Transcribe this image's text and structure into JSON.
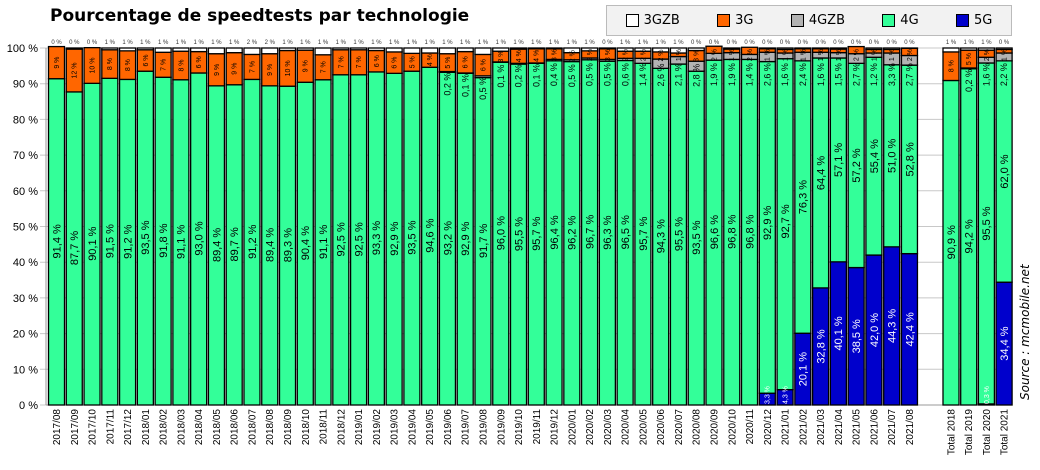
{
  "chart_data": {
    "type": "bar",
    "stacked": true,
    "title": "Pourcentage de speedtests par technologie",
    "source": "Source : mcmobile.net",
    "ylim": [
      0,
      100
    ],
    "yticks": [
      "0 %",
      "10 %",
      "20 %",
      "30 %",
      "40 %",
      "50 %",
      "60 %",
      "70 %",
      "80 %",
      "90 %",
      "100 %"
    ],
    "legend_position": "top-right",
    "colors": {
      "3GZB": "#ffffff",
      "3G": "#ff6600",
      "4GZB": "#b3b3b3",
      "4G": "#33ff99",
      "5G": "#0000cc"
    },
    "legend": [
      "3GZB",
      "3G",
      "4GZB",
      "4G",
      "5G"
    ],
    "categories": [
      "2017/08",
      "2017/09",
      "2017/10",
      "2017/11",
      "2017/12",
      "2018/01",
      "2018/02",
      "2018/03",
      "2018/04",
      "2018/05",
      "2018/06",
      "2018/07",
      "2018/08",
      "2018/09",
      "2018/10",
      "2018/11",
      "2018/12",
      "2019/01",
      "2019/02",
      "2019/03",
      "2019/04",
      "2019/05",
      "2019/06",
      "2019/07",
      "2019/08",
      "2019/09",
      "2019/10",
      "2019/11",
      "2019/12",
      "2020/01",
      "2020/02",
      "2020/03",
      "2020/04",
      "2020/05",
      "2020/06",
      "2020/07",
      "2020/08",
      "2020/09",
      "2020/10",
      "2020/11",
      "2020/12",
      "2021/01",
      "2021/02",
      "2021/03",
      "2021/04",
      "2021/05",
      "2021/06",
      "2021/07",
      "2021/08"
    ],
    "series": [
      {
        "name": "5G",
        "values": [
          0,
          0,
          0,
          0,
          0,
          0,
          0,
          0,
          0,
          0,
          0,
          0,
          0,
          0,
          0,
          0,
          0,
          0,
          0,
          0,
          0,
          0,
          0,
          0,
          0,
          0,
          0,
          0,
          0,
          0,
          0,
          0,
          0,
          0,
          0,
          0,
          0,
          0,
          0,
          0,
          3.3,
          4.3,
          20.1,
          32.8,
          40.1,
          38.5,
          42.0,
          44.3,
          42.4
        ]
      },
      {
        "name": "4G",
        "values": [
          91.4,
          87.7,
          90.1,
          91.5,
          91.2,
          93.5,
          91.8,
          91.1,
          93.0,
          89.4,
          89.7,
          91.2,
          89.4,
          89.3,
          90.4,
          91.1,
          92.5,
          92.5,
          93.3,
          92.9,
          93.5,
          94.6,
          93.2,
          92.9,
          91.7,
          96.0,
          95.5,
          95.7,
          96.4,
          96.2,
          96.7,
          96.3,
          96.5,
          95.7,
          94.3,
          95.5,
          93.5,
          96.6,
          96.8,
          96.8,
          92.9,
          92.7,
          76.3,
          64.4,
          57.1,
          57.2,
          55.4,
          51.0,
          52.8
        ]
      },
      {
        "name": "4GZB",
        "values": [
          null,
          null,
          null,
          null,
          null,
          null,
          null,
          null,
          null,
          null,
          null,
          null,
          null,
          null,
          null,
          null,
          null,
          null,
          null,
          null,
          null,
          0.0,
          0.2,
          0.1,
          0.5,
          0.1,
          0.2,
          0.1,
          0.4,
          0.5,
          0.5,
          0.5,
          0.6,
          1.4,
          2.6,
          2.1,
          2.8,
          1.9,
          1.9,
          1.4,
          2.6,
          1.6,
          2.4,
          1.6,
          1.5,
          2.7,
          1.2,
          3.3,
          2.7
        ]
      },
      {
        "name": "3G",
        "values": [
          9,
          12,
          10,
          8,
          8,
          6,
          7,
          8,
          6,
          9,
          9,
          7,
          9,
          10,
          9,
          7,
          7,
          7,
          6,
          6,
          5,
          4,
          5,
          6,
          6,
          3,
          4,
          4,
          3,
          2,
          2,
          3,
          2,
          2,
          2,
          1,
          3,
          2,
          1,
          2,
          1,
          1,
          1,
          1,
          1,
          2,
          1,
          1,
          2
        ]
      },
      {
        "name": "3GZB",
        "values": [
          0,
          0,
          0,
          1,
          1,
          1,
          1,
          1,
          1,
          1,
          1,
          2,
          2,
          1,
          1,
          1,
          1,
          1,
          1,
          1,
          1,
          1,
          1,
          1,
          1,
          1,
          1,
          1,
          1,
          1,
          1,
          0,
          1,
          1,
          1,
          1,
          0,
          0,
          0,
          0,
          0,
          0,
          0,
          0,
          0,
          0,
          0,
          0,
          0
        ]
      }
    ],
    "totals": {
      "categories": [
        "Total 2018",
        "Total 2019",
        "Total 2020",
        "Total 2021"
      ],
      "5G": [
        0,
        0,
        0.3,
        34.4
      ],
      "4G": [
        90.9,
        94.2,
        95.5,
        62.0
      ],
      "4GZB": [
        0.0,
        0.2,
        1.6,
        2.2
      ],
      "3G": [
        8,
        5,
        2,
        1
      ],
      "3GZB": [
        1,
        1,
        1,
        0
      ]
    }
  }
}
